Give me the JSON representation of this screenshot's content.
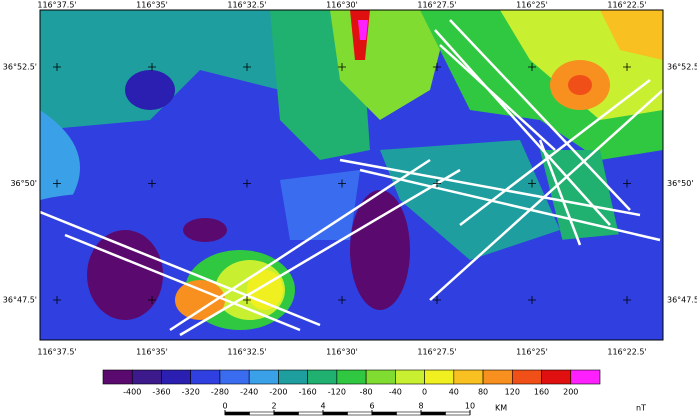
{
  "map": {
    "top_labels": [
      "116°37.5'",
      "116°35'",
      "116°32.5'",
      "116°30'",
      "116°27.5'",
      "116°25'",
      "116°22.5'"
    ],
    "bottom_labels": [
      "116°37.5'",
      "116°35'",
      "116°32.5'",
      "116°30'",
      "116°27.5'",
      "116°25'",
      "116°22.5'"
    ],
    "left_labels": [
      "36°52.5'",
      "36°50'",
      "36°47.5'"
    ],
    "right_labels": [
      "36°52.5'",
      "36°50'",
      "36°47.5'"
    ]
  },
  "colorbar": {
    "colors": [
      "#5a0a6e",
      "#3c1a8c",
      "#2a1fb0",
      "#3040e0",
      "#3a6cf0",
      "#3aa0e8",
      "#1e9e9e",
      "#20b070",
      "#30c840",
      "#80dc30",
      "#c8f030",
      "#f0f020",
      "#f8c020",
      "#f89020",
      "#f05018",
      "#e01010",
      "#ff20ff"
    ],
    "ticks": [
      -400,
      -360,
      -320,
      -280,
      -240,
      -200,
      -160,
      -120,
      -80,
      -40,
      0,
      40,
      80,
      120,
      160,
      200
    ],
    "unit": "nT"
  },
  "scalebar": {
    "ticks": [
      0,
      2,
      4,
      6,
      8,
      10
    ],
    "unit": "KM"
  }
}
